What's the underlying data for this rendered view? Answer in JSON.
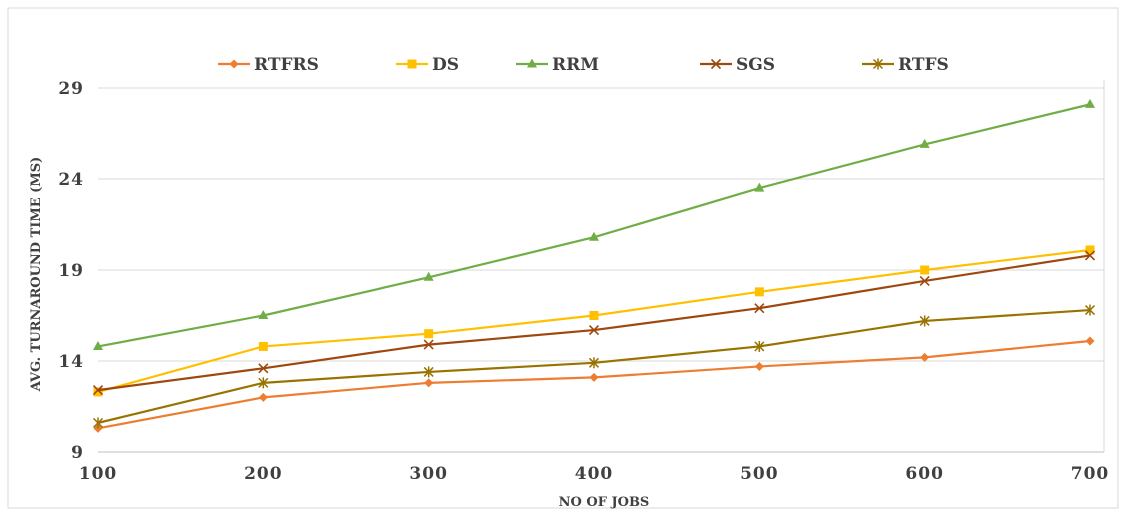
{
  "chart_data": {
    "type": "line",
    "title": "",
    "xlabel": "NO OF JOBS",
    "ylabel": "AVG. TURNAROUND TIME (MS)",
    "x": [
      100,
      200,
      300,
      400,
      500,
      600,
      700
    ],
    "x_tick_labels": [
      "100",
      "200",
      "300",
      "400",
      "500",
      "600",
      "700"
    ],
    "y_ticks": [
      9,
      14,
      19,
      24,
      29
    ],
    "y_tick_labels": [
      "9",
      "14",
      "19",
      "24",
      "29"
    ],
    "ylim": [
      9,
      29
    ],
    "grid": "horizontal",
    "legend_position": "top",
    "series": [
      {
        "name": "RTFRS",
        "color": "#ED7D31",
        "marker": "diamond",
        "values": [
          10.3,
          12.0,
          12.8,
          13.1,
          13.7,
          14.2,
          15.1
        ]
      },
      {
        "name": "DS",
        "color": "#FFC000",
        "marker": "square",
        "values": [
          12.3,
          14.8,
          15.5,
          16.5,
          17.8,
          19.0,
          20.1
        ]
      },
      {
        "name": "RRM",
        "color": "#70AD47",
        "marker": "triangle",
        "values": [
          14.8,
          16.5,
          18.6,
          20.8,
          23.5,
          25.9,
          28.1
        ]
      },
      {
        "name": "SGS",
        "color": "#9E480E",
        "marker": "x",
        "values": [
          12.4,
          13.6,
          14.9,
          15.7,
          16.9,
          18.4,
          19.8
        ]
      },
      {
        "name": "RTFS",
        "color": "#997300",
        "marker": "star",
        "values": [
          10.6,
          12.8,
          13.4,
          13.9,
          14.8,
          16.2,
          16.8
        ]
      }
    ]
  }
}
